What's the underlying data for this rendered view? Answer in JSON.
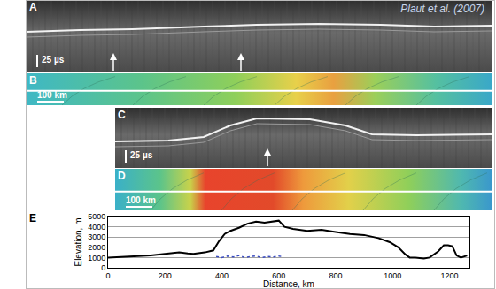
{
  "panels": [
    {
      "label": "A",
      "type": "radar",
      "annotation": "Plaut et al. (2007)",
      "scale_bar": "25 µs"
    },
    {
      "label": "B",
      "type": "map",
      "scale_bar": "100 km"
    },
    {
      "label": "C",
      "type": "radar",
      "scale_bar": "25 µs"
    },
    {
      "label": "D",
      "type": "map",
      "scale_bar": "100 km"
    }
  ],
  "chart_data": {
    "type": "line",
    "label": "E",
    "x_label": "Distance, km",
    "y_label": "Elevation, m",
    "xlim": [
      0,
      1270
    ],
    "xticks": [
      0,
      200,
      400,
      600,
      800,
      1000,
      1200
    ],
    "ylim": [
      0,
      5000
    ],
    "yticks": [
      0,
      1000,
      2000,
      3000,
      4000,
      5000
    ],
    "grid": true,
    "series": [
      {
        "color": "#000000",
        "line_style": "solid",
        "x": [
          0,
          50,
          100,
          150,
          200,
          250,
          280,
          300,
          340,
          370,
          390,
          410,
          430,
          460,
          490,
          520,
          550,
          580,
          600,
          620,
          650,
          700,
          750,
          800,
          850,
          900,
          950,
          990,
          1020,
          1045,
          1060,
          1080,
          1110,
          1130,
          1160,
          1180,
          1195,
          1210,
          1225,
          1240,
          1262
        ],
        "values": [
          1000,
          1050,
          1100,
          1200,
          1350,
          1500,
          1400,
          1350,
          1500,
          1700,
          2600,
          3300,
          3600,
          3900,
          4300,
          4500,
          4400,
          4500,
          4600,
          4000,
          3800,
          3600,
          3700,
          3500,
          3300,
          3200,
          2900,
          2500,
          2000,
          1300,
          1000,
          1000,
          900,
          1000,
          1600,
          2200,
          2200,
          2100,
          1200,
          1000,
          1200
        ]
      },
      {
        "color": "#3b4cc0",
        "line_style": "dot",
        "x": [
          380,
          400,
          420,
          440,
          460,
          480,
          500,
          520,
          540,
          560,
          580,
          600,
          610
        ],
        "values": [
          1100,
          1000,
          1150,
          1050,
          1200,
          1000,
          1100,
          1150,
          1000,
          1100,
          1050,
          1150,
          1100
        ]
      }
    ]
  }
}
